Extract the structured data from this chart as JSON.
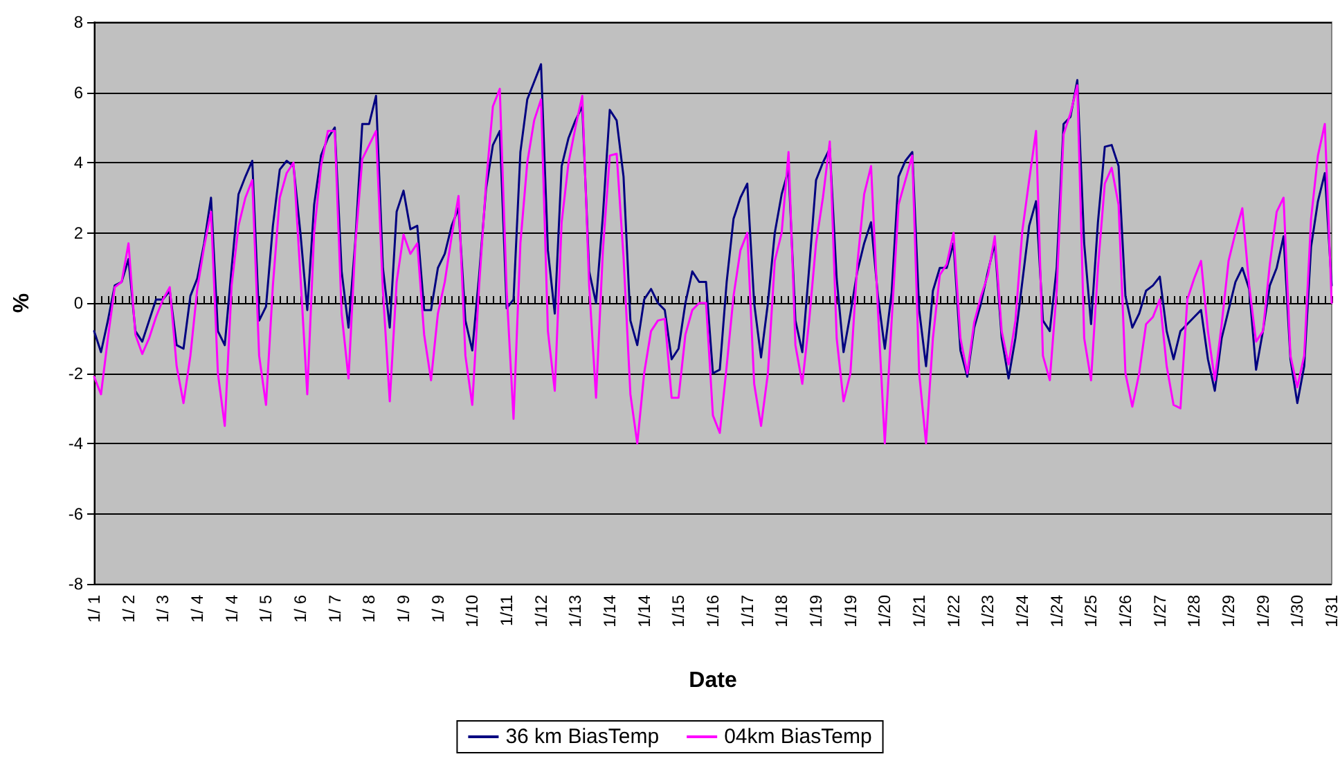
{
  "chart_data": {
    "type": "line",
    "xlabel": "Date",
    "ylabel": "%",
    "categories": [
      "1/ 1",
      null,
      null,
      null,
      null,
      "1/ 2",
      null,
      null,
      null,
      null,
      "1/ 3",
      null,
      null,
      null,
      null,
      "1/ 4",
      null,
      null,
      null,
      null,
      "1/ 4",
      null,
      null,
      null,
      null,
      "1/ 5",
      null,
      null,
      null,
      null,
      "1/ 6",
      null,
      null,
      null,
      null,
      "1/ 7",
      null,
      null,
      null,
      null,
      "1/ 8",
      null,
      null,
      null,
      null,
      "1/ 9",
      null,
      null,
      null,
      null,
      "1/ 9",
      null,
      null,
      null,
      null,
      "1/10",
      null,
      null,
      null,
      null,
      "1/11",
      null,
      null,
      null,
      null,
      "1/12",
      null,
      null,
      null,
      null,
      "1/13",
      null,
      null,
      null,
      null,
      "1/14",
      null,
      null,
      null,
      null,
      "1/14",
      null,
      null,
      null,
      null,
      "1/15",
      null,
      null,
      null,
      null,
      "1/16",
      null,
      null,
      null,
      null,
      "1/17",
      null,
      null,
      null,
      null,
      "1/18",
      null,
      null,
      null,
      null,
      "1/19",
      null,
      null,
      null,
      null,
      "1/19",
      null,
      null,
      null,
      null,
      "1/20",
      null,
      null,
      null,
      null,
      "1/21",
      null,
      null,
      null,
      null,
      "1/22",
      null,
      null,
      null,
      null,
      "1/23",
      null,
      null,
      null,
      null,
      "1/24",
      null,
      null,
      null,
      null,
      "1/24",
      null,
      null,
      null,
      null,
      "1/25",
      null,
      null,
      null,
      null,
      "1/26",
      null,
      null,
      null,
      null,
      "1/27",
      null,
      null,
      null,
      null,
      "1/28",
      null,
      null,
      null,
      null,
      "1/29",
      null,
      null,
      null,
      null,
      "1/29",
      null,
      null,
      null,
      null,
      "1/30",
      null,
      null,
      null,
      null,
      "1/31"
    ],
    "series": [
      {
        "name": "36 km BiasTemp",
        "color": "#000080",
        "values": [
          -0.8,
          -1.4,
          -0.5,
          0.5,
          0.6,
          1.25,
          -0.8,
          -1.1,
          -0.5,
          0.1,
          0.1,
          0.35,
          -1.2,
          -1.3,
          0.2,
          0.7,
          1.7,
          3.0,
          -0.8,
          -1.2,
          1.0,
          3.1,
          3.6,
          4.05,
          -0.5,
          -0.1,
          2.2,
          3.8,
          4.05,
          3.9,
          2.0,
          -0.2,
          2.8,
          4.2,
          4.7,
          5.0,
          0.9,
          -0.7,
          1.8,
          5.1,
          5.1,
          5.9,
          1.0,
          -0.7,
          2.6,
          3.2,
          2.1,
          2.2,
          -0.2,
          -0.2,
          1.0,
          1.4,
          2.2,
          2.7,
          -0.5,
          -1.35,
          0.8,
          3.25,
          4.5,
          4.9,
          -0.15,
          0.1,
          4.3,
          5.8,
          6.3,
          6.8,
          1.5,
          -0.3,
          3.9,
          4.7,
          5.2,
          5.6,
          0.9,
          0.0,
          2.5,
          5.5,
          5.2,
          3.6,
          -0.5,
          -1.2,
          0.1,
          0.4,
          0.0,
          -0.2,
          -1.6,
          -1.3,
          0.0,
          0.9,
          0.6,
          0.6,
          -2.0,
          -1.9,
          0.6,
          2.4,
          3.0,
          3.4,
          0.0,
          -1.55,
          0.0,
          2.0,
          3.1,
          3.8,
          -0.5,
          -1.4,
          1.0,
          3.5,
          4.0,
          4.4,
          0.7,
          -1.4,
          -0.3,
          0.9,
          1.7,
          2.3,
          0.2,
          -1.3,
          0.3,
          3.6,
          4.05,
          4.3,
          -0.2,
          -1.8,
          0.35,
          1.0,
          1.0,
          1.7,
          -1.35,
          -2.1,
          -0.7,
          0.0,
          0.9,
          1.7,
          -1.0,
          -2.15,
          -1.0,
          0.6,
          2.2,
          2.9,
          -0.5,
          -0.8,
          1.0,
          5.1,
          5.3,
          6.35,
          1.7,
          -0.6,
          2.3,
          4.45,
          4.5,
          3.9,
          0.2,
          -0.7,
          -0.3,
          0.35,
          0.5,
          0.75,
          -0.8,
          -1.6,
          -0.8,
          -0.6,
          -0.4,
          -0.2,
          -1.6,
          -2.5,
          -1.0,
          -0.2,
          0.6,
          1.0,
          0.4,
          -1.9,
          -0.8,
          0.5,
          1.0,
          1.9,
          -1.6,
          -2.85,
          -1.8,
          1.6,
          2.9,
          3.7,
          0.5
        ]
      },
      {
        "name": "04km BiasTemp",
        "color": "#ff00ff",
        "values": [
          -2.1,
          -2.6,
          -1.0,
          0.45,
          0.6,
          1.7,
          -0.9,
          -1.45,
          -1.0,
          -0.4,
          0.1,
          0.45,
          -1.8,
          -2.85,
          -1.5,
          0.4,
          1.6,
          2.6,
          -2.0,
          -3.5,
          0.5,
          2.2,
          3.0,
          3.5,
          -1.5,
          -2.9,
          0.5,
          3.0,
          3.7,
          4.0,
          0.8,
          -2.6,
          2.0,
          3.9,
          4.9,
          4.9,
          -0.3,
          -2.15,
          1.7,
          4.1,
          4.5,
          4.9,
          0.35,
          -2.8,
          0.6,
          1.95,
          1.4,
          1.7,
          -0.9,
          -2.2,
          -0.3,
          0.6,
          1.9,
          3.05,
          -1.5,
          -2.9,
          0.5,
          3.4,
          5.6,
          6.1,
          0.35,
          -3.3,
          1.7,
          4.0,
          5.2,
          5.8,
          -0.8,
          -2.5,
          2.3,
          4.0,
          5.0,
          5.9,
          0.5,
          -2.7,
          1.5,
          4.2,
          4.25,
          1.3,
          -2.6,
          -4.0,
          -2.0,
          -0.8,
          -0.5,
          -0.45,
          -2.7,
          -2.7,
          -0.9,
          -0.2,
          0.0,
          0.0,
          -3.2,
          -3.7,
          -1.8,
          0.2,
          1.5,
          2.0,
          -2.3,
          -3.5,
          -2.0,
          1.2,
          2.0,
          4.3,
          -1.2,
          -2.3,
          -0.5,
          1.7,
          3.0,
          4.6,
          -1.0,
          -2.8,
          -2.0,
          1.1,
          3.1,
          3.9,
          -0.2,
          -4.0,
          -0.5,
          2.8,
          3.5,
          4.2,
          -2.0,
          -4.0,
          -1.0,
          0.8,
          1.1,
          2.0,
          -1.0,
          -2.0,
          -0.55,
          0.2,
          0.8,
          1.9,
          -0.8,
          -1.75,
          -0.5,
          2.05,
          3.5,
          4.9,
          -1.5,
          -2.2,
          0.35,
          4.8,
          5.4,
          6.2,
          -1.0,
          -2.2,
          1.0,
          3.4,
          3.85,
          2.8,
          -2.0,
          -2.95,
          -2.0,
          -0.6,
          -0.4,
          0.1,
          -1.8,
          -2.9,
          -3.0,
          0.1,
          0.7,
          1.2,
          -0.8,
          -2.2,
          -0.6,
          1.2,
          2.0,
          2.7,
          0.5,
          -1.1,
          -0.8,
          1.1,
          2.6,
          3.0,
          -1.5,
          -2.4,
          -1.5,
          2.4,
          4.2,
          5.1,
          0.0
        ]
      }
    ],
    "ylim": [
      -8,
      8
    ],
    "yticks": [
      -8,
      -6,
      -4,
      -2,
      0,
      2,
      4,
      6,
      8
    ],
    "grid": "y",
    "legend": "bottom",
    "marker": "none",
    "line_style": "solid"
  }
}
